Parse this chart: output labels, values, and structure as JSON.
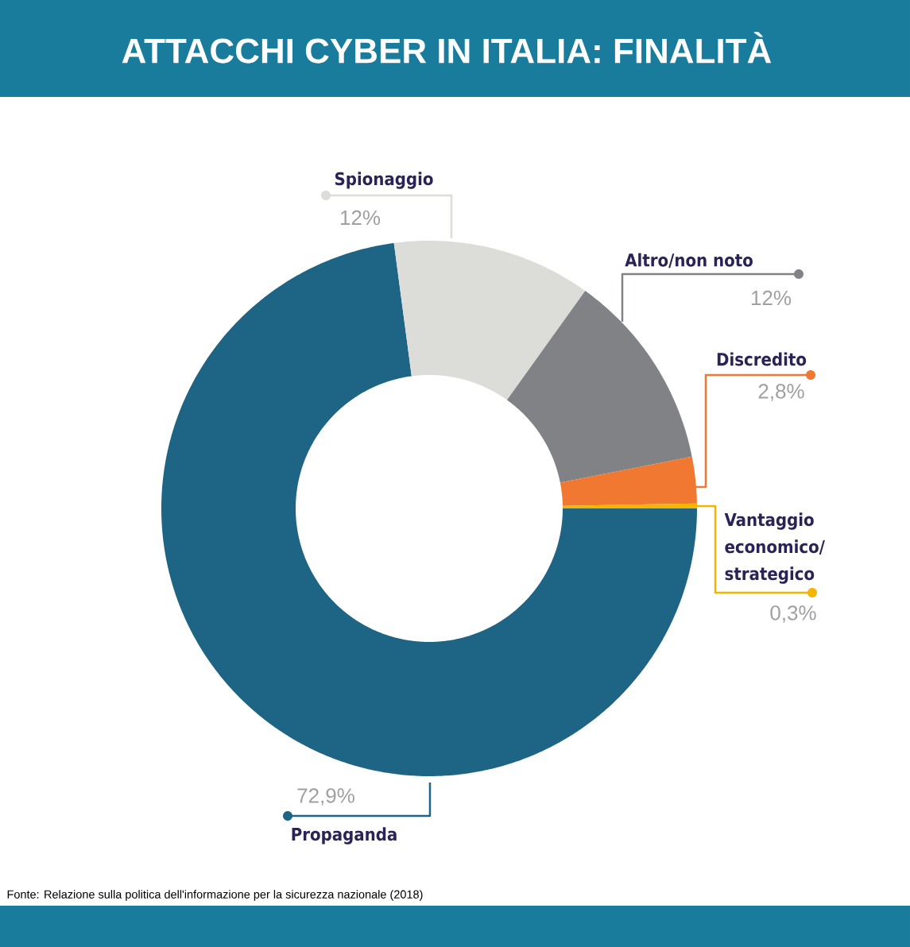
{
  "chart_data": {
    "type": "donut",
    "title": "ATTACCHI CYBER IN ITALIA: FINALITÀ",
    "categories": [
      "Propaganda",
      "Spionaggio",
      "Altro/non noto",
      "Discredito",
      "Vantaggio economico/ strategico"
    ],
    "values": [
      72.9,
      12,
      12,
      2.8,
      0.3
    ],
    "colors": [
      "#1e6484",
      "#dcdcd8",
      "#818285",
      "#f07830",
      "#f5b400"
    ],
    "value_labels": [
      "72,9%",
      "12%",
      "12%",
      "2,8%",
      "0,3%"
    ],
    "annotations": [
      "Fonte: Relazione sulla politica dell'informazione per la sicurezza nazionale (2018)"
    ]
  }
}
